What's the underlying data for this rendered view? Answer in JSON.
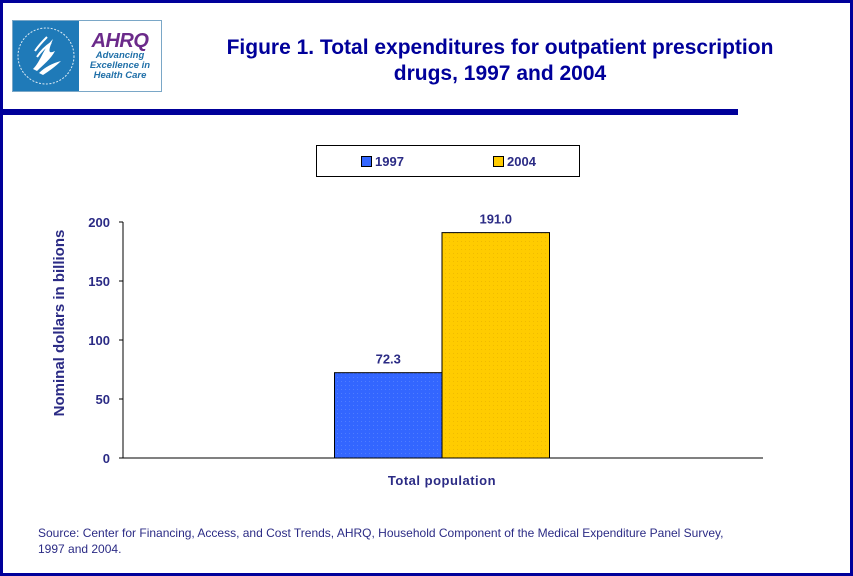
{
  "header": {
    "logo_seal_label": "Department of Health & Human Services USA",
    "logo_brand": "AHRQ",
    "logo_tagline": [
      "Advancing",
      "Excellence in",
      "Health Care"
    ]
  },
  "colors": {
    "frame": "#00009A",
    "text": "#2b2b85",
    "series_1997": "#3366FF",
    "series_2004": "#FFCC00"
  },
  "chart_data": {
    "type": "bar",
    "title": "Figure 1. Total expenditures for outpatient prescription drugs, 1997 and 2004",
    "title_lines": [
      "Figure 1. Total expenditures for outpatient prescription",
      "drugs, 1997 and 2004"
    ],
    "categories": [
      "Total population"
    ],
    "series": [
      {
        "name": "1997",
        "values": [
          72.3
        ],
        "labels": [
          "72.3"
        ],
        "color": "#3366FF"
      },
      {
        "name": "2004",
        "values": [
          191.0
        ],
        "labels": [
          "191.0"
        ],
        "color": "#FFCC00"
      }
    ],
    "xlabel": "",
    "ylabel": "Nominal dollars in billions",
    "ylim": [
      0,
      200
    ],
    "yticks": [
      0,
      50,
      100,
      150,
      200
    ],
    "ytick_labels": [
      "0",
      "50",
      "100",
      "150",
      "200"
    ],
    "grid": false,
    "legend_position": "top-center"
  },
  "footer": {
    "source_lines": [
      "Source: Center for Financing, Access, and Cost Trends, AHRQ, Household Component of the Medical Expenditure Panel Survey,",
      "1997 and 2004."
    ]
  }
}
